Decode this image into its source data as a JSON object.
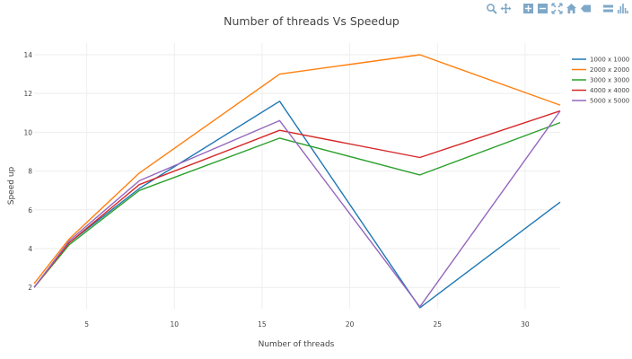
{
  "modebar": {
    "buttons": [
      {
        "icon": "zoom-icon"
      },
      {
        "icon": "pan-icon"
      },
      {
        "icon": "zoom-in-icon"
      },
      {
        "icon": "zoom-out-icon"
      },
      {
        "icon": "autoscale-icon"
      },
      {
        "icon": "reset-axes-icon"
      },
      {
        "icon": "spike-lines-icon"
      },
      {
        "icon": "compare-data-icon"
      },
      {
        "icon": "plotly-logo-icon"
      }
    ],
    "color": "#7ea8c8"
  },
  "chart_data": {
    "type": "line",
    "title": "Number of threads Vs Speedup",
    "xlabel": "Number of threads",
    "ylabel": "Speed up",
    "x": [
      2,
      4,
      8,
      16,
      24,
      32
    ],
    "xlim": [
      2,
      32
    ],
    "ylim": [
      0.9,
      14.6
    ],
    "xticks": [
      5,
      10,
      15,
      20,
      25,
      30
    ],
    "yticks": [
      2,
      4,
      6,
      8,
      10,
      12,
      14
    ],
    "grid": true,
    "legend_position": "top-right",
    "series": [
      {
        "name": "1000 x 1000",
        "color": "#1f77b4",
        "values": [
          2.0,
          4.3,
          7.1,
          11.6,
          0.95,
          6.4
        ]
      },
      {
        "name": "2000 x 2000",
        "color": "#ff7f0e",
        "values": [
          2.2,
          4.5,
          7.9,
          13.0,
          14.0,
          11.4
        ]
      },
      {
        "name": "3000 x 3000",
        "color": "#2ca02c",
        "values": [
          2.0,
          4.2,
          7.0,
          9.7,
          7.8,
          10.5
        ]
      },
      {
        "name": "4000 x 4000",
        "color": "#d62728",
        "values": [
          2.0,
          4.3,
          7.3,
          10.1,
          8.7,
          11.1
        ]
      },
      {
        "name": "5000 x 5000",
        "color": "#9467bd",
        "values": [
          2.0,
          4.4,
          7.5,
          10.6,
          1.0,
          11.1
        ]
      }
    ]
  }
}
